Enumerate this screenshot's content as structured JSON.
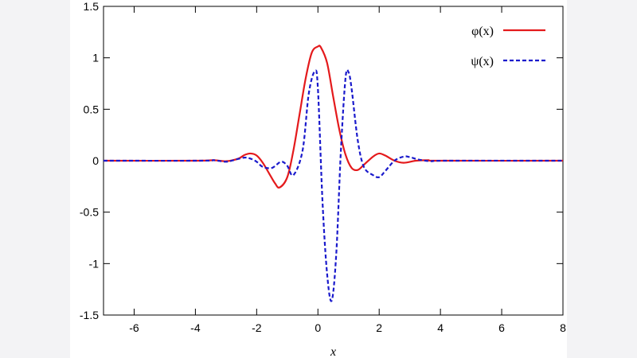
{
  "chart_data": {
    "type": "line",
    "title": "",
    "xlabel": "x",
    "ylabel": "",
    "xlim": [
      -7,
      8
    ],
    "ylim": [
      -1.5,
      1.5
    ],
    "x_ticks": [
      "-6",
      "-4",
      "-2",
      "0",
      "2",
      "4",
      "6",
      "8"
    ],
    "y_ticks": [
      "1.5",
      "1",
      "0.5",
      "0",
      "-0.5",
      "-1",
      "-1.5"
    ],
    "legend": {
      "placement": "top-right"
    },
    "grid": false,
    "series": [
      {
        "name": "φ(x)",
        "color": "#e41a1c",
        "style": "solid",
        "x": [
          -7,
          -4,
          -3.4,
          -3.0,
          -2.6,
          -2.4,
          -2.2,
          -2.0,
          -1.8,
          -1.6,
          -1.4,
          -1.25,
          -1.0,
          -0.8,
          -0.6,
          -0.4,
          -0.2,
          0,
          0.1,
          0.3,
          0.5,
          0.7,
          0.9,
          1.1,
          1.3,
          1.5,
          1.8,
          2.0,
          2.2,
          2.5,
          2.8,
          3.2,
          3.6,
          4.0,
          8
        ],
        "values": [
          0,
          0,
          0.005,
          -0.005,
          0.02,
          0.055,
          0.07,
          0.05,
          -0.02,
          -0.12,
          -0.22,
          -0.26,
          -0.16,
          0.1,
          0.45,
          0.8,
          1.05,
          1.11,
          1.1,
          0.95,
          0.62,
          0.3,
          0.06,
          -0.07,
          -0.09,
          -0.04,
          0.04,
          0.07,
          0.05,
          0.0,
          -0.02,
          0.0,
          0.005,
          0,
          0
        ]
      },
      {
        "name": "ψ(x)",
        "color": "#1a1acc",
        "style": "dashed",
        "x": [
          -7,
          -3.8,
          -3.4,
          -3.0,
          -2.7,
          -2.4,
          -2.2,
          -2.0,
          -1.8,
          -1.5,
          -1.2,
          -1.0,
          -0.8,
          -0.5,
          -0.3,
          -0.1,
          0.0,
          0.15,
          0.3,
          0.45,
          0.6,
          0.75,
          0.9,
          1.0,
          1.1,
          1.3,
          1.5,
          1.8,
          2.0,
          2.2,
          2.5,
          2.8,
          3.0,
          3.3,
          3.7,
          4.2,
          8
        ],
        "values": [
          0,
          0,
          0.005,
          -0.01,
          0.01,
          0.03,
          0.02,
          -0.01,
          -0.06,
          -0.07,
          -0.01,
          -0.05,
          -0.14,
          0.1,
          0.65,
          0.87,
          0.7,
          -0.4,
          -1.1,
          -1.36,
          -0.9,
          0.1,
          0.8,
          0.86,
          0.7,
          0.2,
          -0.06,
          -0.14,
          -0.16,
          -0.1,
          0.0,
          0.04,
          0.035,
          0.01,
          -0.005,
          0,
          0
        ]
      }
    ]
  }
}
